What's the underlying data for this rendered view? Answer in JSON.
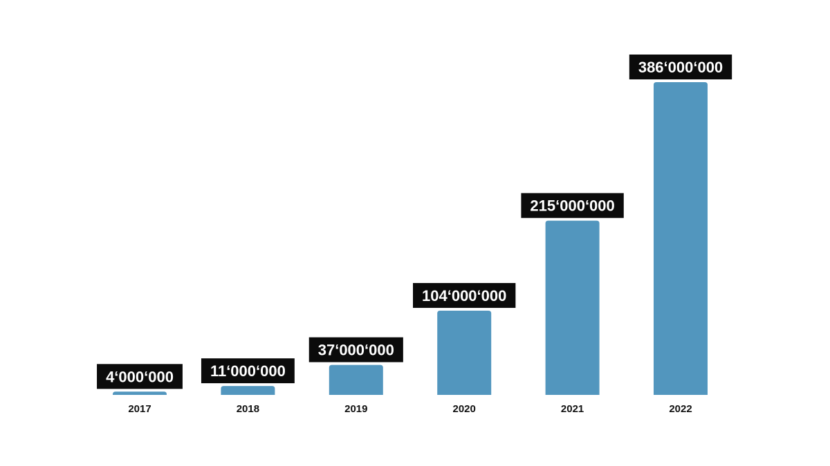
{
  "chart_data": {
    "type": "bar",
    "categories": [
      "2017",
      "2018",
      "2019",
      "2020",
      "2021",
      "2022"
    ],
    "values": [
      4000000,
      11000000,
      37000000,
      104000000,
      215000000,
      386000000
    ],
    "value_labels": [
      "4‘000‘000",
      "11‘000‘000",
      "37‘000‘000",
      "104‘000‘000",
      "215‘000‘000",
      "386‘000‘000"
    ],
    "title": "",
    "xlabel": "",
    "ylabel": "",
    "ylim": [
      0,
      386000000
    ],
    "grid": false,
    "legend": "none",
    "colors": {
      "bar": "#5296be",
      "label_background": "#0b0b0b",
      "label_text": "#ffffff",
      "tick_text": "#111111"
    }
  }
}
